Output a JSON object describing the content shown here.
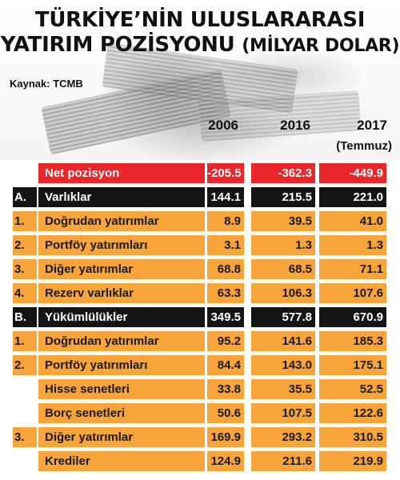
{
  "title": {
    "line1": "TÜRKİYE’NİN ULUSLARARASI",
    "line2": "YATIRIM POZİSYONU",
    "line2_sub": "(MİLYAR DOLAR)"
  },
  "source": "Kaynak: TCMB",
  "columns": {
    "c1": "2006",
    "c2": "2016",
    "c3": "2017",
    "c3_note": "(Temmuz)"
  },
  "colors": {
    "orange": "#f7a43a",
    "dark": "#151515",
    "red": "#e8262b"
  },
  "rows": [
    {
      "num": "",
      "label": "Net pozisyon",
      "v1": "-205.5",
      "v2": "-362.3",
      "v3": "-449.9",
      "style": "red"
    },
    {
      "num": "A.",
      "label": "Varlıklar",
      "v1": "144.1",
      "v2": "215.5",
      "v3": "221.0",
      "style": "dark"
    },
    {
      "num": "1.",
      "label": "Doğrudan yatırımlar",
      "v1": "8.9",
      "v2": "39.5",
      "v3": "41.0",
      "style": "orange"
    },
    {
      "num": "2.",
      "label": "Portföy yatırımları",
      "v1": "3.1",
      "v2": "1.3",
      "v3": "1.3",
      "style": "orange"
    },
    {
      "num": "3.",
      "label": "Diğer yatırımlar",
      "v1": "68.8",
      "v2": "68.5",
      "v3": "71.1",
      "style": "orange"
    },
    {
      "num": "4.",
      "label": "Rezerv varlıklar",
      "v1": "63.3",
      "v2": "106.3",
      "v3": "107.6",
      "style": "orange"
    },
    {
      "num": "B.",
      "label": "Yükümlülükler",
      "v1": "349.5",
      "v2": "577.8",
      "v3": "670.9",
      "style": "dark"
    },
    {
      "num": "1.",
      "label": "Doğrudan yatırımlar",
      "v1": "95.2",
      "v2": "141.6",
      "v3": "185.3",
      "style": "orange"
    },
    {
      "num": "2.",
      "label": "Portföy yatırımları",
      "v1": "84.4",
      "v2": "143.0",
      "v3": "175.1",
      "style": "orange"
    },
    {
      "num": "",
      "label": "Hisse senetleri",
      "v1": "33.8",
      "v2": "35.5",
      "v3": "52.5",
      "style": "orange"
    },
    {
      "num": "",
      "label": "Borç senetleri",
      "v1": "50.6",
      "v2": "107.5",
      "v3": "122.6",
      "style": "orange"
    },
    {
      "num": "3.",
      "label": "Diğer yatırımlar",
      "v1": "169.9",
      "v2": "293.2",
      "v3": "310.5",
      "style": "orange"
    },
    {
      "num": "",
      "label": "Krediler",
      "v1": "124.9",
      "v2": "211.6",
      "v3": "219.9",
      "style": "orange"
    }
  ]
}
